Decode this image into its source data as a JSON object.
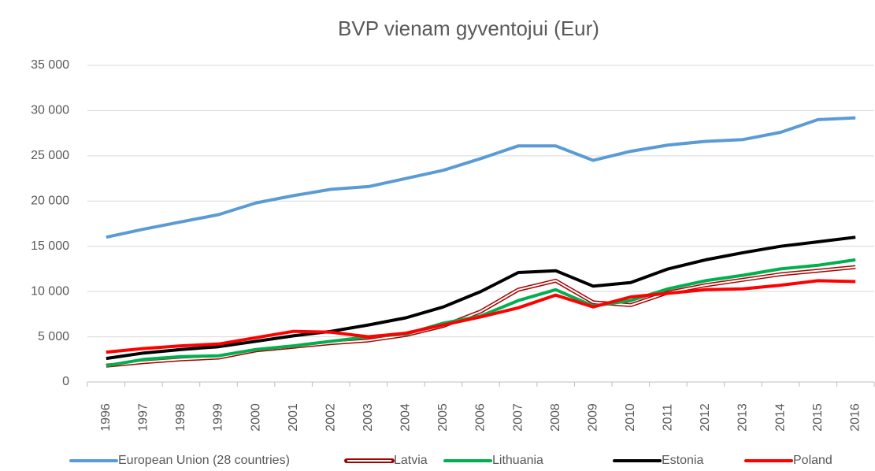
{
  "chart_data": {
    "type": "line",
    "title": "BVP vienam gyventojui (Eur)",
    "categories": [
      "1996",
      "1997",
      "1998",
      "1999",
      "2000",
      "2001",
      "2002",
      "2003",
      "2004",
      "2005",
      "2006",
      "2007",
      "2008",
      "2009",
      "2010",
      "2011",
      "2012",
      "2013",
      "2014",
      "2015",
      "2016"
    ],
    "series": [
      {
        "name": "European Union (28 countries)",
        "color": "#5b9bd5",
        "values": [
          16000,
          16900,
          17700,
          18500,
          19800,
          20600,
          21300,
          21600,
          22500,
          23400,
          24700,
          26100,
          26100,
          24500,
          25500,
          26200,
          26600,
          26800,
          27600,
          29000,
          29200
        ]
      },
      {
        "name": "Latvia",
        "color": "#a50000",
        "line_style": "double",
        "values": [
          1800,
          2200,
          2500,
          2700,
          3500,
          3900,
          4300,
          4600,
          5200,
          6200,
          7800,
          10200,
          11200,
          8800,
          8500,
          9900,
          10700,
          11300,
          11900,
          12300,
          12700
        ]
      },
      {
        "name": "Lithuania",
        "color": "#00b050",
        "values": [
          1800,
          2500,
          2800,
          2900,
          3600,
          4000,
          4500,
          5000,
          5300,
          6500,
          7300,
          9000,
          10200,
          8400,
          9000,
          10300,
          11200,
          11800,
          12500,
          12900,
          13500
        ]
      },
      {
        "name": "Estonia",
        "color": "#000000",
        "values": [
          2600,
          3200,
          3600,
          3900,
          4500,
          5100,
          5600,
          6300,
          7100,
          8300,
          10000,
          12100,
          12300,
          10600,
          11000,
          12500,
          13500,
          14300,
          15000,
          15500,
          16000
        ]
      },
      {
        "name": "Poland",
        "color": "#ff0000",
        "values": [
          3300,
          3700,
          4000,
          4200,
          4900,
          5600,
          5500,
          5000,
          5400,
          6300,
          7200,
          8200,
          9600,
          8300,
          9400,
          9800,
          10200,
          10300,
          10700,
          11200,
          11100
        ]
      }
    ],
    "ylim": [
      0,
      35000
    ],
    "yticks": [
      0,
      {
        "value": 5000,
        "label": "5 000"
      },
      {
        "value": 10000,
        "label": "10 000"
      },
      {
        "value": 15000,
        "label": "15 000"
      },
      {
        "value": 20000,
        "label": "20 000"
      },
      {
        "value": 25000,
        "label": "25 000"
      },
      {
        "value": 30000,
        "label": "30 000"
      },
      {
        "value": 35000,
        "label": "35 000"
      }
    ],
    "grid": true
  }
}
